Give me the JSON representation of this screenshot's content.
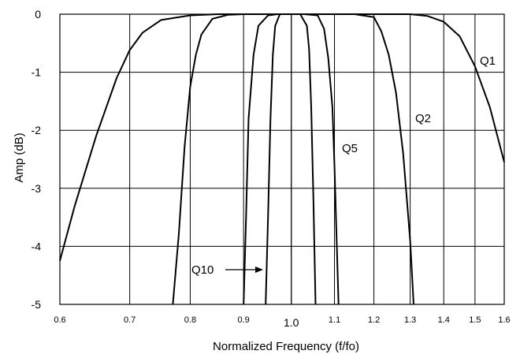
{
  "chart_data": {
    "type": "line",
    "xlabel": "Normalized Frequency (f/fo)",
    "ylabel": "Amp (dB)",
    "xscale": "log",
    "xlim": [
      0.6,
      1.6
    ],
    "ylim": [
      -5,
      0
    ],
    "grid": true,
    "x_ticks": [
      {
        "value": 0.6,
        "label": "0.6"
      },
      {
        "value": 0.7,
        "label": "0.7"
      },
      {
        "value": 0.8,
        "label": "0.8"
      },
      {
        "value": 0.9,
        "label": "0.9"
      },
      {
        "value": 1.0,
        "label": "1.0"
      },
      {
        "value": 1.1,
        "label": "1.1"
      },
      {
        "value": 1.2,
        "label": "1.2"
      },
      {
        "value": 1.3,
        "label": "1.3"
      },
      {
        "value": 1.4,
        "label": "1.4"
      },
      {
        "value": 1.5,
        "label": "1.5"
      },
      {
        "value": 1.6,
        "label": "1.6"
      }
    ],
    "y_ticks": [
      {
        "value": 0,
        "label": "0"
      },
      {
        "value": -1,
        "label": "-1"
      },
      {
        "value": -2,
        "label": "-2"
      },
      {
        "value": -3,
        "label": "-3"
      },
      {
        "value": -4,
        "label": "-4"
      },
      {
        "value": -5,
        "label": "-5"
      }
    ],
    "series": [
      {
        "name": "Q1",
        "x": [
          0.6,
          0.62,
          0.65,
          0.68,
          0.7,
          0.72,
          0.75,
          0.8,
          0.85,
          0.9,
          0.95,
          1.0,
          1.1,
          1.2,
          1.3,
          1.35,
          1.4,
          1.45,
          1.5,
          1.55,
          1.6
        ],
        "y": [
          -4.25,
          -3.3,
          -2.1,
          -1.1,
          -0.62,
          -0.32,
          -0.1,
          -0.02,
          0,
          0,
          0,
          0,
          0,
          0,
          0,
          -0.03,
          -0.13,
          -0.38,
          -0.9,
          -1.6,
          -2.55
        ]
      },
      {
        "name": "Q2",
        "x": [
          0.77,
          0.78,
          0.79,
          0.8,
          0.81,
          0.82,
          0.84,
          0.87,
          0.9,
          1.0,
          1.1,
          1.15,
          1.2,
          1.22,
          1.24,
          1.26,
          1.28,
          1.3,
          1.31
        ],
        "y": [
          -5.0,
          -3.8,
          -2.3,
          -1.25,
          -0.7,
          -0.35,
          -0.08,
          -0.01,
          0,
          0,
          0,
          0,
          -0.05,
          -0.3,
          -0.7,
          -1.35,
          -2.4,
          -3.9,
          -5.0
        ]
      },
      {
        "name": "Q5",
        "x": [
          0.9,
          0.905,
          0.91,
          0.92,
          0.93,
          0.95,
          0.97,
          1.0,
          1.03,
          1.06,
          1.075,
          1.085,
          1.095,
          1.1,
          1.11
        ],
        "y": [
          -5.0,
          -3.5,
          -1.8,
          -0.7,
          -0.2,
          -0.02,
          0,
          0,
          0,
          -0.02,
          -0.25,
          -0.75,
          -1.6,
          -2.6,
          -5.0
        ]
      },
      {
        "name": "Q10",
        "x": [
          0.945,
          0.95,
          0.955,
          0.96,
          0.965,
          0.975,
          1.0,
          1.02,
          1.035,
          1.04,
          1.045,
          1.05,
          1.055
        ],
        "y": [
          -5.0,
          -3.5,
          -1.8,
          -0.7,
          -0.2,
          0,
          0,
          0,
          -0.2,
          -0.6,
          -1.6,
          -3.2,
          -5.0
        ]
      }
    ],
    "labels": [
      "Q1",
      "Q2",
      "Q5",
      "Q10"
    ]
  }
}
